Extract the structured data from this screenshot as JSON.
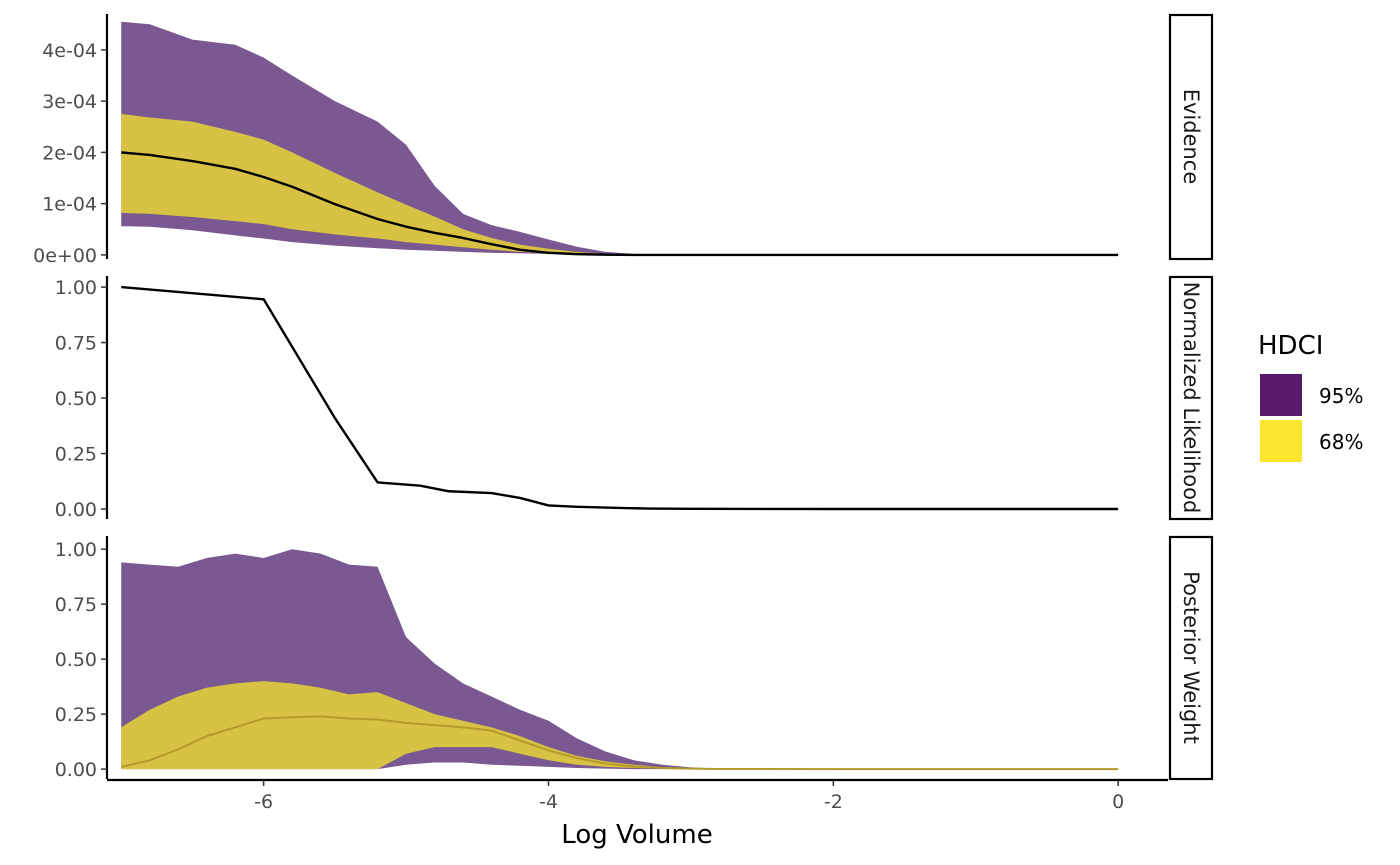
{
  "chart_data": {
    "type": "area",
    "xlabel": "Log Volume",
    "x_ticks": [
      "-6",
      "-4",
      "-2",
      "0"
    ],
    "xlim": [
      -7.1,
      0.35
    ],
    "colors": {
      "band95": "#4B1E6A",
      "band68": "#F4E32C",
      "line": "#000000"
    },
    "legend": {
      "title": "HDCI",
      "position": "right",
      "entries": [
        {
          "label": "95%",
          "color": "#581B6E"
        },
        {
          "label": "68%",
          "color": "#FAE62E"
        }
      ]
    },
    "panels": [
      {
        "strip": "Evidence",
        "ylim": [
          -8e-06,
          0.00047
        ],
        "y_ticks": [
          {
            "value": 0,
            "label": "0e+00"
          },
          {
            "value": 0.0001,
            "label": "1e-04"
          },
          {
            "value": 0.0002,
            "label": "2e-04"
          },
          {
            "value": 0.0003,
            "label": "3e-04"
          },
          {
            "value": 0.0004,
            "label": "4e-04"
          }
        ],
        "x": [
          -7,
          -6.8,
          -6.5,
          -6.2,
          -6,
          -5.8,
          -5.5,
          -5.2,
          -5,
          -4.8,
          -4.6,
          -4.4,
          -4.2,
          -4,
          -3.8,
          -3.6,
          -3.4,
          -3.2,
          -3,
          -2,
          0
        ],
        "band95": {
          "lower": [
            5.6e-05,
            5.5e-05,
            4.8e-05,
            3.8e-05,
            3.2e-05,
            2.5e-05,
            1.8e-05,
            1.3e-05,
            1e-05,
            8e-06,
            6e-06,
            4e-06,
            3e-06,
            2e-06,
            1e-06,
            5e-07,
            0,
            0,
            0,
            0,
            0
          ],
          "upper": [
            0.000455,
            0.00045,
            0.00042,
            0.00041,
            0.000385,
            0.00035,
            0.0003,
            0.00026,
            0.000215,
            0.000135,
            8e-05,
            5.8e-05,
            4.5e-05,
            3e-05,
            1.6e-05,
            6e-06,
            2e-06,
            5e-07,
            0,
            0,
            0
          ]
        },
        "band68": {
          "lower": [
            8.2e-05,
            8e-05,
            7.4e-05,
            6.6e-05,
            6e-05,
            5e-05,
            4e-05,
            3.2e-05,
            2.5e-05,
            2e-05,
            1.5e-05,
            1e-05,
            6e-06,
            3e-06,
            1.5e-06,
            5e-07,
            0,
            0,
            0,
            0,
            0
          ],
          "upper": [
            0.000275,
            0.000268,
            0.00026,
            0.00024,
            0.000225,
            0.0002,
            0.00016,
            0.000122,
            9.8e-05,
            7.5e-05,
            5e-05,
            3.3e-05,
            2e-05,
            1.2e-05,
            6e-06,
            2e-06,
            5e-07,
            0,
            0,
            0,
            0
          ]
        },
        "line": [
          0.0002,
          0.000195,
          0.000183,
          0.000168,
          0.000152,
          0.000133,
          9.9e-05,
          7e-05,
          5.5e-05,
          4.3e-05,
          3.3e-05,
          2.1e-05,
          1e-05,
          4e-06,
          1.5e-06,
          5e-07,
          0,
          0,
          0,
          0,
          0
        ]
      },
      {
        "strip": "Normalized Likelihood",
        "ylim": [
          -0.045,
          1.05
        ],
        "y_ticks": [
          {
            "value": 0,
            "label": "0.00"
          },
          {
            "value": 0.25,
            "label": "0.25"
          },
          {
            "value": 0.5,
            "label": "0.50"
          },
          {
            "value": 0.75,
            "label": "0.75"
          },
          {
            "value": 1,
            "label": "1.00"
          }
        ],
        "x": [
          -7,
          -6,
          -5.5,
          -5.2,
          -4.9,
          -4.7,
          -4.4,
          -4.2,
          -4,
          -3.8,
          -3.5,
          -3.3,
          -3,
          -2,
          0
        ],
        "line": [
          1.0,
          0.945,
          0.41,
          0.12,
          0.105,
          0.08,
          0.072,
          0.05,
          0.016,
          0.01,
          0.005,
          0.002,
          0.001,
          0,
          0
        ]
      },
      {
        "strip": "Posterior Weight",
        "ylim": [
          -0.045,
          1.06
        ],
        "y_ticks": [
          {
            "value": 0,
            "label": "0.00"
          },
          {
            "value": 0.25,
            "label": "0.25"
          },
          {
            "value": 0.5,
            "label": "0.50"
          },
          {
            "value": 0.75,
            "label": "0.75"
          },
          {
            "value": 1,
            "label": "1.00"
          }
        ],
        "x": [
          -7,
          -6.8,
          -6.6,
          -6.4,
          -6.2,
          -6,
          -5.8,
          -5.6,
          -5.4,
          -5.2,
          -5,
          -4.8,
          -4.6,
          -4.4,
          -4.2,
          -4,
          -3.8,
          -3.6,
          -3.4,
          -3.2,
          -3,
          -2.8,
          -2,
          0
        ],
        "band95": {
          "lower": [
            0,
            0,
            0,
            0,
            0,
            0,
            0,
            0,
            0,
            0,
            0.02,
            0.03,
            0.03,
            0.02,
            0.015,
            0.01,
            0.005,
            0.002,
            0,
            0,
            0,
            0,
            0,
            0
          ],
          "upper": [
            0.94,
            0.93,
            0.92,
            0.96,
            0.98,
            0.96,
            1.0,
            0.98,
            0.93,
            0.92,
            0.6,
            0.48,
            0.39,
            0.33,
            0.27,
            0.22,
            0.14,
            0.08,
            0.04,
            0.02,
            0.008,
            0.002,
            0,
            0
          ]
        },
        "band68": {
          "lower": [
            0,
            0,
            0,
            0,
            0,
            0,
            0,
            0,
            0,
            0,
            0.07,
            0.1,
            0.1,
            0.1,
            0.07,
            0.04,
            0.02,
            0.01,
            0.005,
            0.002,
            0,
            0,
            0,
            0
          ],
          "upper": [
            0.19,
            0.27,
            0.33,
            0.37,
            0.39,
            0.4,
            0.39,
            0.37,
            0.34,
            0.35,
            0.3,
            0.25,
            0.22,
            0.19,
            0.15,
            0.1,
            0.06,
            0.035,
            0.02,
            0.008,
            0.003,
            0.001,
            0,
            0
          ]
        },
        "line": [
          0.01,
          0.04,
          0.09,
          0.15,
          0.19,
          0.23,
          0.235,
          0.24,
          0.23,
          0.225,
          0.21,
          0.2,
          0.19,
          0.175,
          0.13,
          0.085,
          0.05,
          0.025,
          0.012,
          0.005,
          0.002,
          0.0005,
          0,
          0
        ]
      }
    ]
  }
}
